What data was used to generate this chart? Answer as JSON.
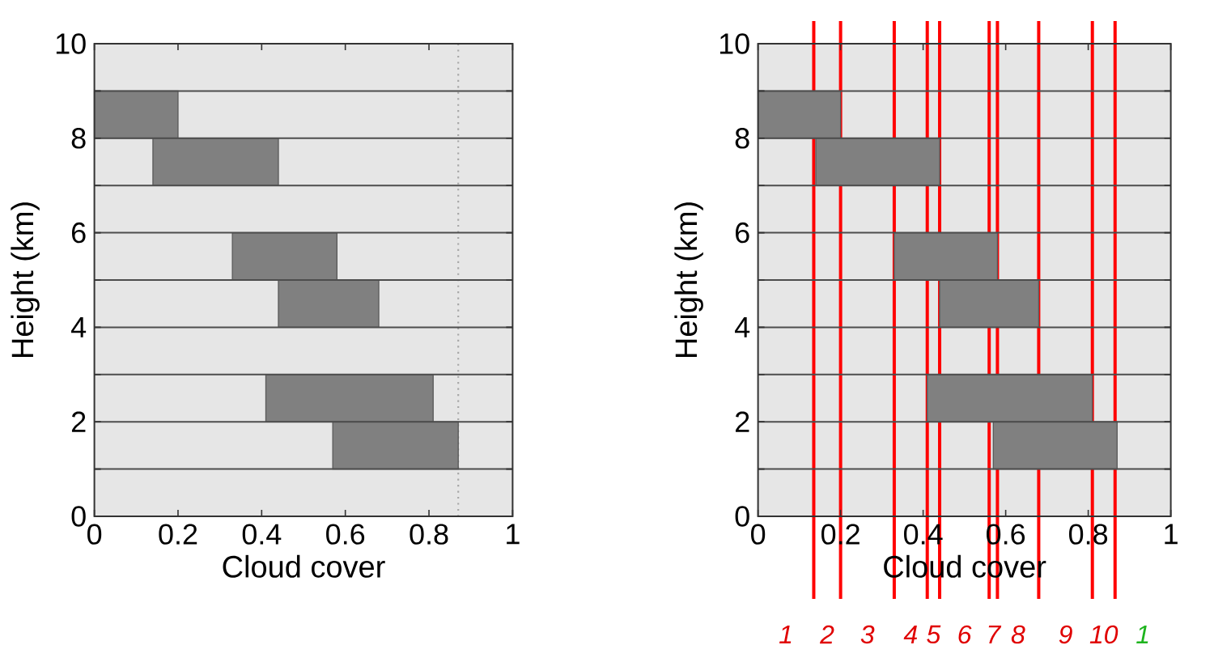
{
  "chart_data": [
    {
      "type": "bar",
      "orientation": "horizontal",
      "xlabel": "Cloud cover",
      "ylabel": "Height (km)",
      "x": [
        8.5,
        7.5,
        5.5,
        4.5,
        2.5,
        1.5
      ],
      "base": [
        0,
        0.14,
        0.33,
        0.44,
        0.41,
        0.57
      ],
      "values": [
        0.2,
        0.3,
        0.25,
        0.24,
        0.4,
        0.3
      ],
      "color": "#808080",
      "xlim": [
        0,
        1
      ],
      "ylim": [
        0,
        10
      ],
      "xticks": [
        0,
        0.2,
        0.4,
        0.6,
        0.8,
        1
      ],
      "yticks": [
        0,
        {
          "value": 1,
          "label": null
        },
        2,
        {
          "value": 3,
          "label": null
        },
        4,
        {
          "value": 5,
          "label": null
        },
        6,
        {
          "value": 7,
          "label": null
        },
        8,
        {
          "value": 9,
          "label": null
        },
        10
      ],
      "grid": "y",
      "ref_lines": [
        {
          "axis": "x",
          "value": 0.87,
          "color": "#a6a6a6",
          "line_style": "dotted"
        }
      ]
    },
    {
      "type": "bar",
      "orientation": "horizontal",
      "xlabel": "Cloud cover",
      "ylabel": "Height (km)",
      "x": [
        8.5,
        7.5,
        5.5,
        4.5,
        2.5,
        1.5
      ],
      "base": [
        0,
        0.14,
        0.33,
        0.44,
        0.41,
        0.57
      ],
      "values": [
        0.2,
        0.3,
        0.25,
        0.24,
        0.4,
        0.3
      ],
      "color": "#808080",
      "xlim": [
        0,
        1
      ],
      "ylim": [
        0,
        10
      ],
      "xticks": [
        0,
        0.2,
        0.4,
        0.6,
        0.8,
        1
      ],
      "yticks": [
        0,
        {
          "value": 1,
          "label": null
        },
        2,
        {
          "value": 3,
          "label": null
        },
        4,
        {
          "value": 5,
          "label": null
        },
        6,
        {
          "value": 7,
          "label": null
        },
        8,
        {
          "value": 9,
          "label": null
        },
        10
      ],
      "grid": "y",
      "ref_lines": [
        {
          "axis": "x",
          "value": 0.135,
          "color": "#ff0000"
        },
        {
          "axis": "x",
          "value": 0.2,
          "color": "#ff0000"
        },
        {
          "axis": "x",
          "value": 0.33,
          "color": "#ff0000"
        },
        {
          "axis": "x",
          "value": 0.41,
          "color": "#ff0000"
        },
        {
          "axis": "x",
          "value": 0.44,
          "color": "#ff0000"
        },
        {
          "axis": "x",
          "value": 0.56,
          "color": "#ff0000"
        },
        {
          "axis": "x",
          "value": 0.58,
          "color": "#ff0000"
        },
        {
          "axis": "x",
          "value": 0.68,
          "color": "#ff0000"
        },
        {
          "axis": "x",
          "value": 0.81,
          "color": "#ff0000"
        },
        {
          "axis": "x",
          "value": 0.865,
          "color": "#ff0000"
        }
      ],
      "annotations": [
        "1",
        "2",
        "3",
        "4",
        "5",
        "6",
        "7",
        "8",
        "9",
        "10",
        "1"
      ]
    }
  ]
}
